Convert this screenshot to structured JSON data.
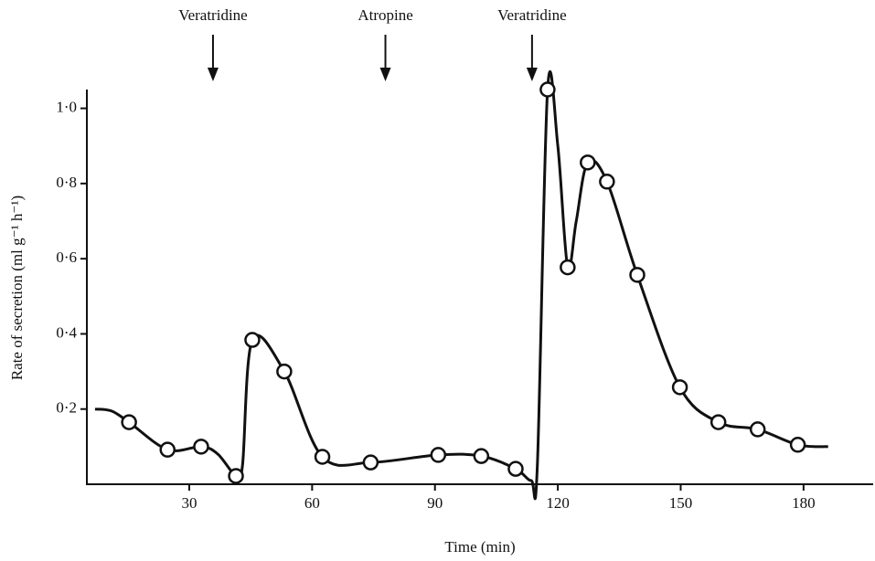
{
  "chart_data": {
    "type": "line",
    "xlabel": "Time (min)",
    "ylabel": "Rate of secretion (ml g⁻¹ h⁻¹)",
    "xlim": [
      5,
      197
    ],
    "ylim": [
      0,
      1.05
    ],
    "xticks": [
      30,
      60,
      90,
      120,
      150,
      180
    ],
    "yticks": [
      {
        "value": 0.2,
        "label": "0·2"
      },
      {
        "value": 0.4,
        "label": "0·4"
      },
      {
        "value": 0.6,
        "label": "0·6"
      },
      {
        "value": 0.8,
        "label": "0·8"
      },
      {
        "value": 1.0,
        "label": "1·0"
      }
    ],
    "annotations": [
      {
        "text": "Veratridine",
        "x": 35.8
      },
      {
        "text": "Atropine",
        "x": 77.9
      },
      {
        "text": "Veratridine",
        "x": 113.7
      }
    ],
    "series": [
      {
        "color": "#111111",
        "markers": false,
        "x": [
          7,
          11,
          15.3,
          24.7,
          32.9,
          37,
          41.4,
          43,
          45.4,
          53.2,
          62.5,
          74.3,
          90.8,
          101.3,
          109.7,
          113.5,
          115,
          117.5,
          120,
          122.4,
          124.5,
          127.3,
          132,
          139.4,
          149.8,
          159.2,
          168.8,
          178.6,
          186
        ],
        "values": [
          0.2,
          0.195,
          0.165,
          0.092,
          0.1,
          0.08,
          0.022,
          0.05,
          0.384,
          0.3,
          0.073,
          0.058,
          0.078,
          0.075,
          0.041,
          0.01,
          0.05,
          1.05,
          0.9,
          0.577,
          0.7,
          0.856,
          0.805,
          0.557,
          0.258,
          0.165,
          0.146,
          0.105,
          0.1
        ]
      },
      {
        "color": "#111111",
        "markers": true,
        "x": [
          15.3,
          24.7,
          32.9,
          41.4,
          45.4,
          53.2,
          62.5,
          74.3,
          90.8,
          101.3,
          109.7,
          117.5,
          122.4,
          127.3,
          132,
          139.4,
          149.8,
          159.2,
          168.8,
          178.6
        ],
        "values": [
          0.165,
          0.092,
          0.1,
          0.022,
          0.384,
          0.3,
          0.073,
          0.058,
          0.078,
          0.075,
          0.041,
          1.05,
          0.577,
          0.856,
          0.805,
          0.557,
          0.258,
          0.165,
          0.146,
          0.105
        ]
      }
    ]
  }
}
